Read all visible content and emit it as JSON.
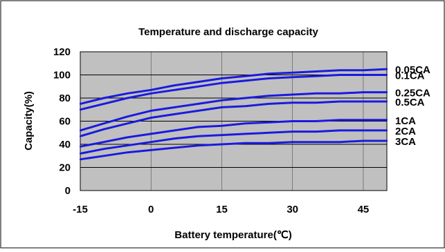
{
  "chart_data": {
    "type": "line",
    "title": "Temperature and discharge capacity",
    "xlabel": "Battery temperature(℃)",
    "ylabel": "Capacity(%)",
    "xlim": [
      -15,
      50
    ],
    "ylim": [
      0,
      120
    ],
    "xticks": [
      -15,
      0,
      15,
      30,
      45
    ],
    "yticks": [
      0,
      20,
      40,
      60,
      80,
      100,
      120
    ],
    "grid": true,
    "plot_bg": "#c0c0c0",
    "line_color": "#1a1adf",
    "series": [
      {
        "name": "0.05CA",
        "x": [
          -15,
          -10,
          -5,
          0,
          5,
          10,
          15,
          20,
          25,
          30,
          35,
          40,
          45,
          50
        ],
        "y": [
          75,
          80,
          84,
          87,
          91,
          94,
          97,
          99,
          101,
          102,
          103,
          104,
          104,
          105
        ]
      },
      {
        "name": "0.1CA",
        "x": [
          -15,
          -10,
          -5,
          0,
          5,
          10,
          15,
          20,
          25,
          30,
          35,
          40,
          45,
          50
        ],
        "y": [
          70,
          75,
          80,
          84,
          87,
          90,
          93,
          95,
          97,
          98,
          99,
          100,
          100,
          100
        ]
      },
      {
        "name": "0.25CA",
        "x": [
          -15,
          -10,
          -5,
          0,
          5,
          10,
          15,
          20,
          25,
          30,
          35,
          40,
          45,
          50
        ],
        "y": [
          52,
          58,
          64,
          69,
          72,
          75,
          78,
          80,
          82,
          83,
          84,
          84,
          85,
          85
        ]
      },
      {
        "name": "0.5CA",
        "x": [
          -15,
          -10,
          -5,
          0,
          5,
          10,
          15,
          20,
          25,
          30,
          35,
          40,
          45,
          50
        ],
        "y": [
          47,
          53,
          58,
          63,
          66,
          69,
          72,
          73,
          75,
          76,
          76,
          77,
          77,
          77
        ]
      },
      {
        "name": "1CA",
        "x": [
          -15,
          -10,
          -5,
          0,
          5,
          10,
          15,
          20,
          25,
          30,
          35,
          40,
          45,
          50
        ],
        "y": [
          38,
          42,
          46,
          49,
          52,
          55,
          56,
          58,
          59,
          60,
          60,
          61,
          61,
          61
        ]
      },
      {
        "name": "2CA",
        "x": [
          -15,
          -10,
          -5,
          0,
          5,
          10,
          15,
          20,
          25,
          30,
          35,
          40,
          45,
          50
        ],
        "y": [
          32,
          36,
          39,
          42,
          45,
          47,
          48,
          49,
          50,
          51,
          51,
          52,
          52,
          52
        ]
      },
      {
        "name": "3CA",
        "x": [
          -15,
          -10,
          -5,
          0,
          5,
          10,
          15,
          20,
          25,
          30,
          35,
          40,
          45,
          50
        ],
        "y": [
          27,
          30,
          33,
          35,
          37,
          39,
          40,
          41,
          41,
          42,
          42,
          42,
          43,
          43
        ]
      }
    ]
  }
}
